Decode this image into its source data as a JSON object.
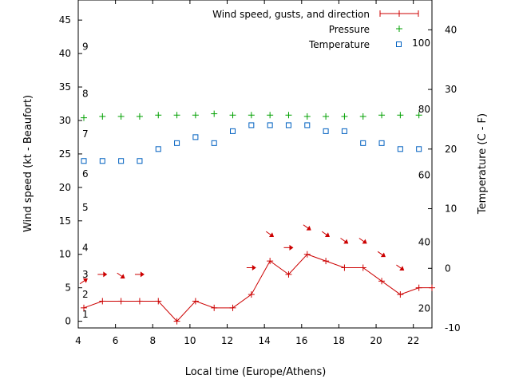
{
  "chart_data": {
    "type": "line",
    "xlabel": "Local time (Europe/Athens)",
    "ylabel": "Wind speed (kt - Beaufort)",
    "y2label": "Temperature (C - F)",
    "xlim": [
      4,
      23
    ],
    "ylim": [
      -1,
      48
    ],
    "y2lim": [
      -10,
      45
    ],
    "xticks": [
      "4",
      "6",
      "8",
      "10",
      "12",
      "14",
      "16",
      "18",
      "20",
      "22"
    ],
    "yticks": [
      "0",
      "5",
      "10",
      "15",
      "20",
      "25",
      "30",
      "35",
      "40",
      "45"
    ],
    "y2ticks": [
      "-10",
      "0",
      "10",
      "20",
      "30",
      "40"
    ],
    "beaufort_labels": [
      {
        "text": "1",
        "y": 1
      },
      {
        "text": "2",
        "y": 4
      },
      {
        "text": "3",
        "y": 7
      },
      {
        "text": "4",
        "y": 11
      },
      {
        "text": "5",
        "y": 17
      },
      {
        "text": "6",
        "y": 22
      },
      {
        "text": "7",
        "y": 28
      },
      {
        "text": "8",
        "y": 34
      },
      {
        "text": "9",
        "y": 41
      }
    ],
    "fahrenheit_labels": [
      {
        "text": "20",
        "t": -6.7
      },
      {
        "text": "40",
        "t": 4.4
      },
      {
        "text": "60",
        "t": 15.6
      },
      {
        "text": "80",
        "t": 26.7
      },
      {
        "text": "100",
        "t": 37.8
      }
    ],
    "legend": {
      "position": "top-right",
      "entries": [
        "Wind speed, gusts, and direction",
        "Pressure",
        "Temperature"
      ]
    },
    "series": [
      {
        "name": "Wind speed, gusts, and direction",
        "color": "#cc0000",
        "x": [
          4.3,
          5.3,
          6.3,
          7.3,
          8.3,
          9.3,
          10.3,
          11.3,
          12.3,
          13.3,
          14.3,
          15.3,
          16.3,
          17.3,
          18.3,
          19.3,
          20.3,
          21.3,
          22.3,
          23
        ],
        "values": [
          2,
          3,
          3,
          3,
          3,
          0,
          3,
          2,
          2,
          4,
          9,
          7,
          10,
          9,
          8,
          8,
          6,
          4,
          5,
          5
        ]
      },
      {
        "name": "Pressure",
        "color": "#00a000",
        "x": [
          4.3,
          5.3,
          6.3,
          7.3,
          8.3,
          9.3,
          10.3,
          11.3,
          12.3,
          13.3,
          14.3,
          15.3,
          16.3,
          17.3,
          18.3,
          19.3,
          20.3,
          21.3,
          22.3
        ],
        "values": [
          30.4,
          30.6,
          30.6,
          30.6,
          30.8,
          30.8,
          30.8,
          31.0,
          30.8,
          30.8,
          30.8,
          30.8,
          30.6,
          30.6,
          30.6,
          30.6,
          30.8,
          30.8,
          30.8
        ]
      },
      {
        "name": "Temperature",
        "color": "#0060c0",
        "x": [
          4.3,
          5.3,
          6.3,
          7.3,
          8.3,
          9.3,
          10.3,
          11.3,
          12.3,
          13.3,
          14.3,
          15.3,
          16.3,
          17.3,
          18.3,
          19.3,
          20.3,
          21.3,
          22.3
        ],
        "values": [
          18,
          18,
          18,
          18,
          20,
          21,
          22,
          21,
          23,
          24,
          24,
          24,
          24,
          23,
          23,
          21,
          21,
          20,
          20
        ]
      }
    ],
    "wind_direction_arrows": [
      {
        "x": 4.3,
        "y": 6,
        "dir": "NE"
      },
      {
        "x": 5.3,
        "y": 7,
        "dir": "E"
      },
      {
        "x": 6.3,
        "y": 6.8,
        "dir": "SE"
      },
      {
        "x": 7.3,
        "y": 7,
        "dir": "E"
      },
      {
        "x": 13.3,
        "y": 8,
        "dir": "E"
      },
      {
        "x": 14.3,
        "y": 13,
        "dir": "SE"
      },
      {
        "x": 15.3,
        "y": 11,
        "dir": "E"
      },
      {
        "x": 16.3,
        "y": 14,
        "dir": "SE"
      },
      {
        "x": 17.3,
        "y": 13,
        "dir": "SE"
      },
      {
        "x": 18.3,
        "y": 12,
        "dir": "SE"
      },
      {
        "x": 19.3,
        "y": 12,
        "dir": "SE"
      },
      {
        "x": 20.3,
        "y": 10,
        "dir": "SE"
      },
      {
        "x": 21.3,
        "y": 8,
        "dir": "SE"
      }
    ]
  }
}
